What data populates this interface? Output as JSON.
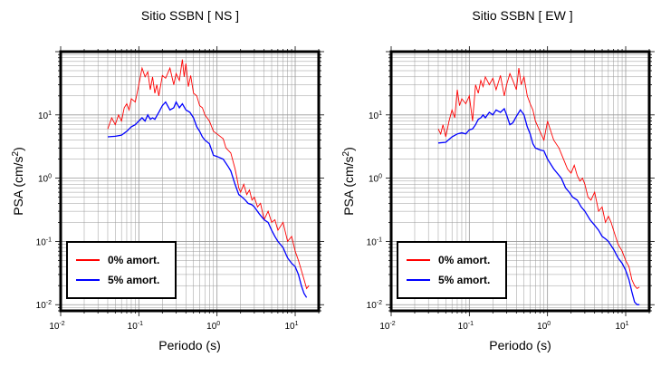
{
  "chart_data": [
    {
      "type": "line",
      "title": "Sitio SSBN [ NS ]",
      "xlabel": "Periodo (s)",
      "ylabel": "PSA (cm/s",
      "ylabel_sup": "2",
      "ylabel_tail": ")",
      "xscale": "log",
      "yscale": "log",
      "xlim": [
        0.01,
        20
      ],
      "ylim": [
        0.008,
        100
      ],
      "xticks": [
        {
          "base": "10",
          "exp": "-2"
        },
        {
          "base": "10",
          "exp": "-1"
        },
        {
          "base": "10",
          "exp": "0"
        },
        {
          "base": "10",
          "exp": "1"
        }
      ],
      "yticks": [
        {
          "base": "10",
          "exp": "-2"
        },
        {
          "base": "10",
          "exp": "-1"
        },
        {
          "base": "10",
          "exp": "0"
        },
        {
          "base": "10",
          "exp": "1"
        }
      ],
      "grid": true,
      "legend_position": "bottom-left",
      "series": [
        {
          "name": "0% amort.",
          "color": "#ff0000",
          "points": [
            [
              0.04,
              6.0
            ],
            [
              0.045,
              9.0
            ],
            [
              0.05,
              7.0
            ],
            [
              0.055,
              10.0
            ],
            [
              0.06,
              8.0
            ],
            [
              0.065,
              13.0
            ],
            [
              0.07,
              15.0
            ],
            [
              0.075,
              12.0
            ],
            [
              0.08,
              18.0
            ],
            [
              0.09,
              16.0
            ],
            [
              0.1,
              30.0
            ],
            [
              0.11,
              55.0
            ],
            [
              0.12,
              40.0
            ],
            [
              0.13,
              48.0
            ],
            [
              0.14,
              25.0
            ],
            [
              0.15,
              40.0
            ],
            [
              0.16,
              22.0
            ],
            [
              0.17,
              30.0
            ],
            [
              0.18,
              20.0
            ],
            [
              0.2,
              42.0
            ],
            [
              0.22,
              38.0
            ],
            [
              0.25,
              55.0
            ],
            [
              0.28,
              30.0
            ],
            [
              0.3,
              45.0
            ],
            [
              0.33,
              35.0
            ],
            [
              0.36,
              75.0
            ],
            [
              0.38,
              40.0
            ],
            [
              0.4,
              65.0
            ],
            [
              0.43,
              28.0
            ],
            [
              0.46,
              42.0
            ],
            [
              0.5,
              22.0
            ],
            [
              0.55,
              20.0
            ],
            [
              0.6,
              14.0
            ],
            [
              0.65,
              13.0
            ],
            [
              0.7,
              10.0
            ],
            [
              0.8,
              8.0
            ],
            [
              0.9,
              5.5
            ],
            [
              1.0,
              5.0
            ],
            [
              1.2,
              4.2
            ],
            [
              1.3,
              3.0
            ],
            [
              1.5,
              2.5
            ],
            [
              1.7,
              1.4
            ],
            [
              1.8,
              1.0
            ],
            [
              1.9,
              0.7
            ],
            [
              2.0,
              0.6
            ],
            [
              2.2,
              0.8
            ],
            [
              2.4,
              0.55
            ],
            [
              2.6,
              0.65
            ],
            [
              2.8,
              0.45
            ],
            [
              3.0,
              0.5
            ],
            [
              3.3,
              0.35
            ],
            [
              3.6,
              0.4
            ],
            [
              4.0,
              0.22
            ],
            [
              4.5,
              0.3
            ],
            [
              5.0,
              0.2
            ],
            [
              5.5,
              0.22
            ],
            [
              6.0,
              0.15
            ],
            [
              7.0,
              0.2
            ],
            [
              8.0,
              0.1
            ],
            [
              9.0,
              0.12
            ],
            [
              10.0,
              0.07
            ],
            [
              11.0,
              0.05
            ],
            [
              12.0,
              0.035
            ],
            [
              13.0,
              0.025
            ],
            [
              14.0,
              0.018
            ],
            [
              15.0,
              0.02
            ]
          ]
        },
        {
          "name": "5% amort.",
          "color": "#0000ff",
          "points": [
            [
              0.04,
              4.5
            ],
            [
              0.05,
              4.6
            ],
            [
              0.06,
              4.8
            ],
            [
              0.07,
              5.5
            ],
            [
              0.08,
              6.5
            ],
            [
              0.09,
              7.0
            ],
            [
              0.1,
              8.0
            ],
            [
              0.11,
              9.0
            ],
            [
              0.12,
              8.0
            ],
            [
              0.13,
              10.0
            ],
            [
              0.14,
              8.5
            ],
            [
              0.15,
              9.0
            ],
            [
              0.16,
              8.5
            ],
            [
              0.18,
              11.0
            ],
            [
              0.2,
              14.0
            ],
            [
              0.22,
              16.0
            ],
            [
              0.25,
              12.0
            ],
            [
              0.28,
              13.0
            ],
            [
              0.3,
              16.0
            ],
            [
              0.33,
              13.0
            ],
            [
              0.36,
              15.0
            ],
            [
              0.4,
              12.0
            ],
            [
              0.45,
              11.0
            ],
            [
              0.5,
              9.0
            ],
            [
              0.55,
              6.5
            ],
            [
              0.6,
              5.5
            ],
            [
              0.65,
              4.5
            ],
            [
              0.7,
              4.0
            ],
            [
              0.8,
              3.5
            ],
            [
              0.9,
              2.3
            ],
            [
              1.0,
              2.2
            ],
            [
              1.2,
              2.0
            ],
            [
              1.4,
              1.5
            ],
            [
              1.5,
              1.3
            ],
            [
              1.7,
              0.8
            ],
            [
              1.9,
              0.55
            ],
            [
              2.1,
              0.5
            ],
            [
              2.3,
              0.45
            ],
            [
              2.5,
              0.4
            ],
            [
              2.8,
              0.38
            ],
            [
              3.0,
              0.35
            ],
            [
              3.5,
              0.27
            ],
            [
              4.0,
              0.22
            ],
            [
              4.5,
              0.2
            ],
            [
              5.0,
              0.15
            ],
            [
              5.5,
              0.12
            ],
            [
              6.0,
              0.1
            ],
            [
              7.0,
              0.08
            ],
            [
              8.0,
              0.055
            ],
            [
              9.0,
              0.045
            ],
            [
              10.0,
              0.04
            ],
            [
              11.0,
              0.03
            ],
            [
              12.0,
              0.02
            ],
            [
              13.0,
              0.015
            ],
            [
              14.0,
              0.013
            ]
          ]
        }
      ]
    },
    {
      "type": "line",
      "title": "Sitio SSBN [ EW ]",
      "xlabel": "Periodo (s)",
      "ylabel": "PSA (cm/s",
      "ylabel_sup": "2",
      "ylabel_tail": ")",
      "xscale": "log",
      "yscale": "log",
      "xlim": [
        0.01,
        20
      ],
      "ylim": [
        0.008,
        100
      ],
      "xticks": [
        {
          "base": "10",
          "exp": "-2"
        },
        {
          "base": "10",
          "exp": "-1"
        },
        {
          "base": "10",
          "exp": "0"
        },
        {
          "base": "10",
          "exp": "1"
        }
      ],
      "yticks": [
        {
          "base": "10",
          "exp": "-2"
        },
        {
          "base": "10",
          "exp": "-1"
        },
        {
          "base": "10",
          "exp": "0"
        },
        {
          "base": "10",
          "exp": "1"
        }
      ],
      "grid": true,
      "legend_position": "bottom-left",
      "series": [
        {
          "name": "0% amort.",
          "color": "#ff0000",
          "points": [
            [
              0.04,
              6.0
            ],
            [
              0.043,
              5.0
            ],
            [
              0.046,
              7.0
            ],
            [
              0.05,
              4.5
            ],
            [
              0.055,
              8.0
            ],
            [
              0.06,
              12.0
            ],
            [
              0.065,
              9.0
            ],
            [
              0.07,
              25.0
            ],
            [
              0.075,
              14.0
            ],
            [
              0.08,
              18.0
            ],
            [
              0.09,
              15.0
            ],
            [
              0.1,
              20.0
            ],
            [
              0.11,
              8.0
            ],
            [
              0.12,
              30.0
            ],
            [
              0.13,
              22.0
            ],
            [
              0.14,
              35.0
            ],
            [
              0.15,
              28.0
            ],
            [
              0.16,
              40.0
            ],
            [
              0.18,
              30.0
            ],
            [
              0.2,
              38.0
            ],
            [
              0.22,
              25.0
            ],
            [
              0.25,
              42.0
            ],
            [
              0.28,
              20.0
            ],
            [
              0.3,
              30.0
            ],
            [
              0.33,
              45.0
            ],
            [
              0.36,
              35.0
            ],
            [
              0.4,
              25.0
            ],
            [
              0.43,
              55.0
            ],
            [
              0.46,
              30.0
            ],
            [
              0.5,
              40.0
            ],
            [
              0.55,
              20.0
            ],
            [
              0.6,
              15.0
            ],
            [
              0.65,
              12.0
            ],
            [
              0.7,
              8.0
            ],
            [
              0.8,
              5.5
            ],
            [
              0.9,
              4.0
            ],
            [
              1.0,
              8.0
            ],
            [
              1.2,
              4.0
            ],
            [
              1.4,
              3.0
            ],
            [
              1.6,
              2.0
            ],
            [
              1.8,
              1.4
            ],
            [
              2.0,
              1.2
            ],
            [
              2.2,
              1.6
            ],
            [
              2.4,
              1.1
            ],
            [
              2.6,
              0.9
            ],
            [
              2.8,
              1.0
            ],
            [
              3.0,
              0.8
            ],
            [
              3.3,
              0.5
            ],
            [
              3.6,
              0.45
            ],
            [
              4.0,
              0.6
            ],
            [
              4.5,
              0.3
            ],
            [
              5.0,
              0.35
            ],
            [
              5.5,
              0.2
            ],
            [
              6.0,
              0.25
            ],
            [
              6.5,
              0.2
            ],
            [
              7.0,
              0.15
            ],
            [
              8.0,
              0.09
            ],
            [
              9.0,
              0.07
            ],
            [
              10.0,
              0.05
            ],
            [
              11.0,
              0.04
            ],
            [
              12.0,
              0.025
            ],
            [
              13.0,
              0.02
            ],
            [
              14.0,
              0.018
            ],
            [
              15.0,
              0.019
            ]
          ]
        },
        {
          "name": "5% amort.",
          "color": "#0000ff",
          "points": [
            [
              0.04,
              3.6
            ],
            [
              0.05,
              3.7
            ],
            [
              0.06,
              4.5
            ],
            [
              0.07,
              5.0
            ],
            [
              0.08,
              5.2
            ],
            [
              0.09,
              5.0
            ],
            [
              0.1,
              5.8
            ],
            [
              0.11,
              6.0
            ],
            [
              0.12,
              7.0
            ],
            [
              0.13,
              8.5
            ],
            [
              0.14,
              9.0
            ],
            [
              0.15,
              10.0
            ],
            [
              0.16,
              9.0
            ],
            [
              0.18,
              11.0
            ],
            [
              0.2,
              10.0
            ],
            [
              0.22,
              12.0
            ],
            [
              0.25,
              11.0
            ],
            [
              0.28,
              12.5
            ],
            [
              0.3,
              10.0
            ],
            [
              0.33,
              7.0
            ],
            [
              0.36,
              7.5
            ],
            [
              0.4,
              9.5
            ],
            [
              0.45,
              12.0
            ],
            [
              0.5,
              10.0
            ],
            [
              0.55,
              6.5
            ],
            [
              0.6,
              5.0
            ],
            [
              0.65,
              3.5
            ],
            [
              0.7,
              3.0
            ],
            [
              0.8,
              2.8
            ],
            [
              0.9,
              2.7
            ],
            [
              1.0,
              2.0
            ],
            [
              1.2,
              1.4
            ],
            [
              1.5,
              1.0
            ],
            [
              1.7,
              0.7
            ],
            [
              1.9,
              0.6
            ],
            [
              2.1,
              0.5
            ],
            [
              2.4,
              0.45
            ],
            [
              2.7,
              0.35
            ],
            [
              3.0,
              0.3
            ],
            [
              3.5,
              0.22
            ],
            [
              4.0,
              0.18
            ],
            [
              4.5,
              0.15
            ],
            [
              5.0,
              0.12
            ],
            [
              5.5,
              0.11
            ],
            [
              6.0,
              0.1
            ],
            [
              7.0,
              0.075
            ],
            [
              8.0,
              0.055
            ],
            [
              9.0,
              0.045
            ],
            [
              10.0,
              0.035
            ],
            [
              11.0,
              0.025
            ],
            [
              12.0,
              0.016
            ],
            [
              13.0,
              0.011
            ],
            [
              14.0,
              0.01
            ],
            [
              15.0,
              0.01
            ]
          ]
        }
      ]
    }
  ]
}
